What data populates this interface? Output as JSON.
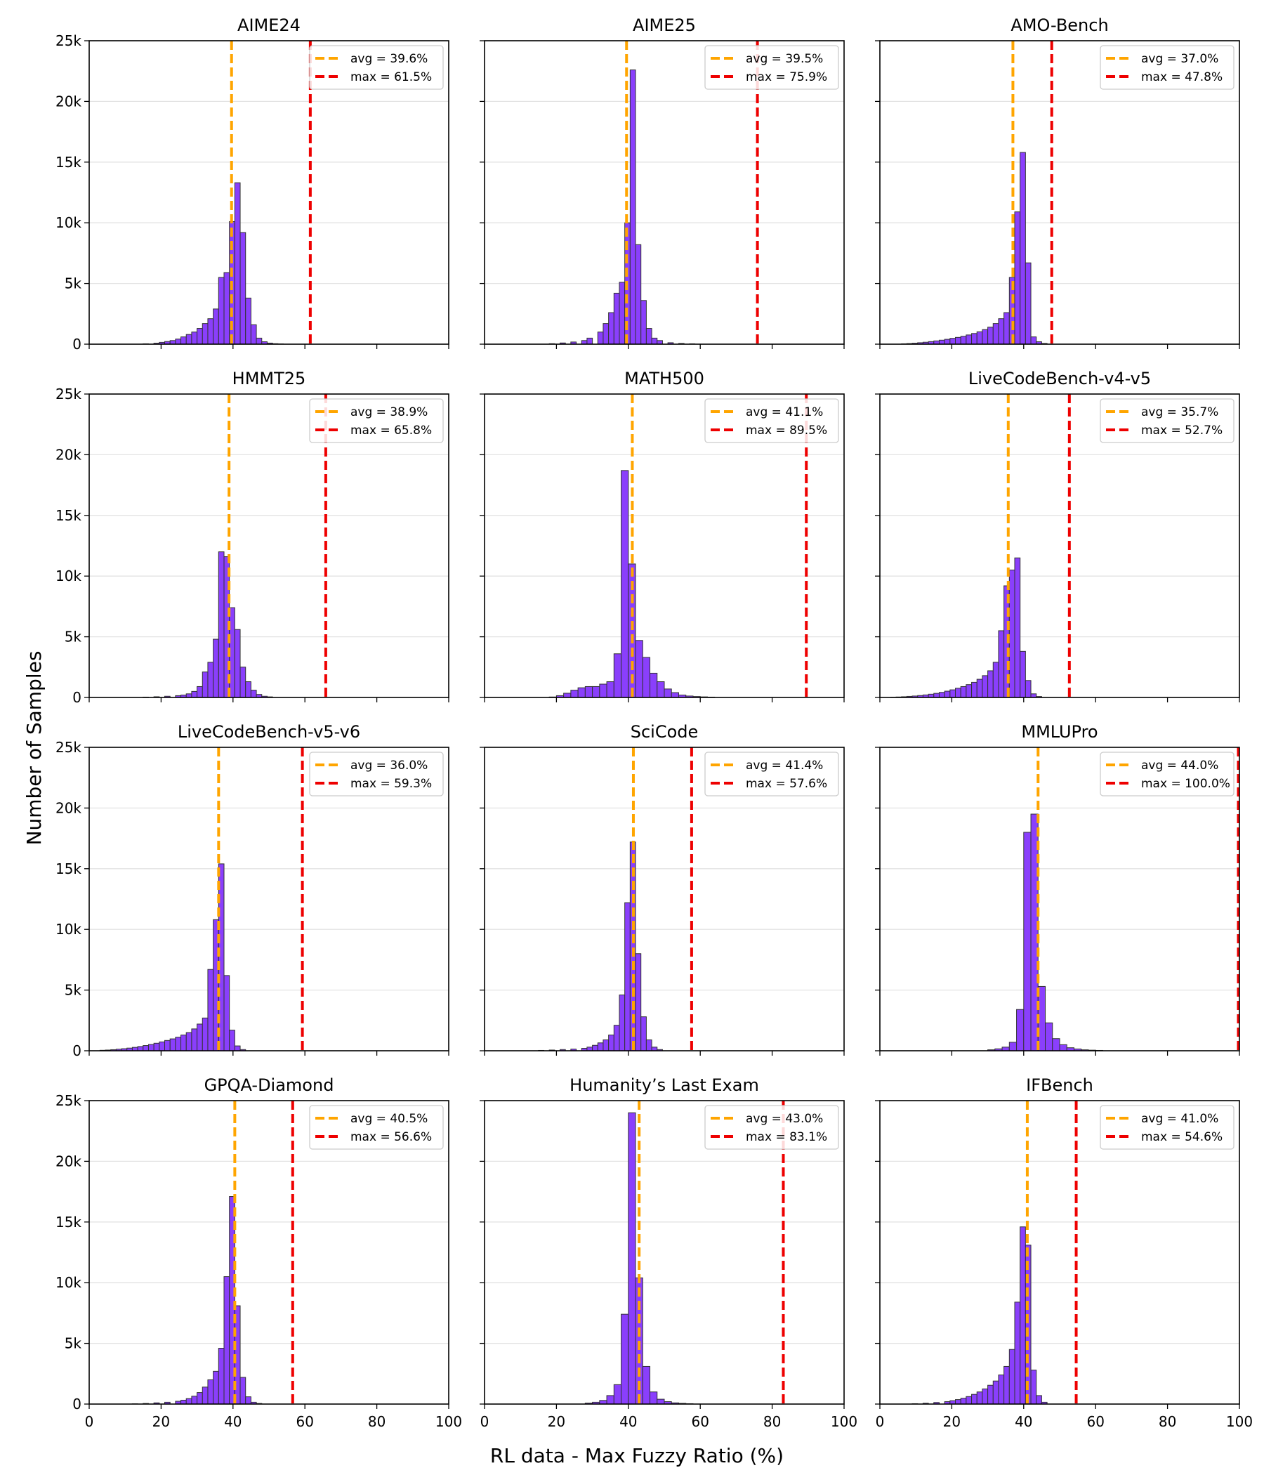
{
  "figure": {
    "ylabel": "Number of Samples",
    "xlabel": "RL data - Max Fuzzy Ratio (%)",
    "bar_color": "#8a3ffc",
    "bar_edge_color": "#333333",
    "avg_color": "#ffa500",
    "max_color": "#ee0000"
  },
  "chart_data": [
    {
      "type": "bar",
      "title": "AIME24",
      "xlim": [
        0,
        100
      ],
      "ylim": [
        0,
        25000
      ],
      "bin_width": 1.5,
      "xticks": [
        "0",
        "20",
        "40",
        "60",
        "80",
        "100"
      ],
      "yticks": [
        "0",
        "5k",
        "10k",
        "15k",
        "20k",
        "25k"
      ],
      "legend_avg": "avg = 39.6%",
      "legend_max": "max = 61.5%",
      "avg": 39.6,
      "max": 61.5,
      "bins": [
        [
          15,
          30
        ],
        [
          18,
          80
        ],
        [
          19.5,
          150
        ],
        [
          21,
          220
        ],
        [
          22.5,
          300
        ],
        [
          24,
          420
        ],
        [
          25.5,
          600
        ],
        [
          27,
          800
        ],
        [
          28.5,
          1000
        ],
        [
          30,
          1300
        ],
        [
          31.5,
          1700
        ],
        [
          33,
          2100
        ],
        [
          34.5,
          2900
        ],
        [
          36,
          5500
        ],
        [
          37.5,
          5900
        ],
        [
          39,
          10100
        ],
        [
          40.5,
          13300
        ],
        [
          42,
          9200
        ],
        [
          43.5,
          3800
        ],
        [
          45,
          1600
        ],
        [
          46.5,
          500
        ],
        [
          48,
          200
        ],
        [
          49.5,
          90
        ],
        [
          51,
          40
        ],
        [
          52.5,
          20
        ]
      ]
    },
    {
      "type": "bar",
      "title": "AIME25",
      "xlim": [
        0,
        100
      ],
      "ylim": [
        0,
        25000
      ],
      "bin_width": 1.5,
      "xticks": [
        "0",
        "20",
        "40",
        "60",
        "80",
        "100"
      ],
      "yticks": [
        "0",
        "5k",
        "10k",
        "15k",
        "20k",
        "25k"
      ],
      "legend_avg": "avg = 39.5%",
      "legend_max": "max = 75.9%",
      "avg": 39.5,
      "max": 75.9,
      "bins": [
        [
          18,
          40
        ],
        [
          21,
          100
        ],
        [
          24,
          180
        ],
        [
          27,
          300
        ],
        [
          28.5,
          500
        ],
        [
          31.5,
          1000
        ],
        [
          33,
          1700
        ],
        [
          34.5,
          2600
        ],
        [
          36,
          4200
        ],
        [
          37.5,
          5100
        ],
        [
          39,
          10000
        ],
        [
          40.5,
          22600
        ],
        [
          42,
          8200
        ],
        [
          43.5,
          3600
        ],
        [
          45,
          1300
        ],
        [
          46.5,
          500
        ],
        [
          48,
          300
        ],
        [
          51,
          120
        ],
        [
          54,
          60
        ],
        [
          57,
          30
        ]
      ]
    },
    {
      "type": "bar",
      "title": "AMO-Bench",
      "xlim": [
        0,
        100
      ],
      "ylim": [
        0,
        25000
      ],
      "bin_width": 1.5,
      "xticks": [
        "0",
        "20",
        "40",
        "60",
        "80",
        "100"
      ],
      "yticks": [
        "0",
        "5k",
        "10k",
        "15k",
        "20k",
        "25k"
      ],
      "legend_avg": "avg = 37.0%",
      "legend_max": "max = 47.8%",
      "avg": 37.0,
      "max": 47.8,
      "bins": [
        [
          6,
          30
        ],
        [
          7.5,
          50
        ],
        [
          9,
          80
        ],
        [
          10.5,
          120
        ],
        [
          12,
          160
        ],
        [
          13.5,
          210
        ],
        [
          15,
          270
        ],
        [
          16.5,
          330
        ],
        [
          18,
          400
        ],
        [
          19.5,
          480
        ],
        [
          21,
          560
        ],
        [
          22.5,
          650
        ],
        [
          24,
          760
        ],
        [
          25.5,
          880
        ],
        [
          27,
          1020
        ],
        [
          28.5,
          1200
        ],
        [
          30,
          1400
        ],
        [
          31.5,
          1700
        ],
        [
          33,
          2100
        ],
        [
          34.5,
          2600
        ],
        [
          36,
          5500
        ],
        [
          37.5,
          10900
        ],
        [
          39,
          15800
        ],
        [
          40.5,
          6700
        ],
        [
          42,
          600
        ],
        [
          43.5,
          200
        ],
        [
          45,
          60
        ]
      ]
    },
    {
      "type": "bar",
      "title": "HMMT25",
      "xlim": [
        0,
        100
      ],
      "ylim": [
        0,
        25000
      ],
      "bin_width": 1.5,
      "xticks": [
        "0",
        "20",
        "40",
        "60",
        "80",
        "100"
      ],
      "yticks": [
        "0",
        "5k",
        "10k",
        "15k",
        "20k",
        "25k"
      ],
      "legend_avg": "avg = 38.9%",
      "legend_max": "max = 65.8%",
      "avg": 38.9,
      "max": 65.8,
      "bins": [
        [
          15,
          30
        ],
        [
          18,
          60
        ],
        [
          21,
          100
        ],
        [
          24,
          150
        ],
        [
          25.5,
          200
        ],
        [
          27,
          300
        ],
        [
          28.5,
          500
        ],
        [
          30,
          900
        ],
        [
          31.5,
          2100
        ],
        [
          33,
          2900
        ],
        [
          34.5,
          4800
        ],
        [
          36,
          12000
        ],
        [
          37.5,
          11600
        ],
        [
          39,
          7400
        ],
        [
          40.5,
          5600
        ],
        [
          42,
          2500
        ],
        [
          43.5,
          1300
        ],
        [
          45,
          600
        ],
        [
          46.5,
          250
        ],
        [
          48,
          100
        ],
        [
          49.5,
          50
        ]
      ]
    },
    {
      "type": "bar",
      "title": "MATH500",
      "xlim": [
        0,
        100
      ],
      "ylim": [
        0,
        25000
      ],
      "bin_width": 2,
      "xticks": [
        "0",
        "20",
        "40",
        "60",
        "80",
        "100"
      ],
      "yticks": [
        "0",
        "5k",
        "10k",
        "15k",
        "20k",
        "25k"
      ],
      "legend_avg": "avg = 41.1%",
      "legend_max": "max = 89.5%",
      "avg": 41.1,
      "max": 89.5,
      "bins": [
        [
          18,
          40
        ],
        [
          20,
          150
        ],
        [
          22,
          350
        ],
        [
          24,
          600
        ],
        [
          26,
          800
        ],
        [
          28,
          900
        ],
        [
          30,
          900
        ],
        [
          32,
          1100
        ],
        [
          34,
          1300
        ],
        [
          36,
          3600
        ],
        [
          38,
          18700
        ],
        [
          40,
          11000
        ],
        [
          42,
          4700
        ],
        [
          44,
          3300
        ],
        [
          46,
          2000
        ],
        [
          48,
          1300
        ],
        [
          50,
          700
        ],
        [
          52,
          400
        ],
        [
          54,
          200
        ],
        [
          56,
          120
        ],
        [
          58,
          80
        ],
        [
          60,
          50
        ],
        [
          62,
          30
        ]
      ]
    },
    {
      "type": "bar",
      "title": "LiveCodeBench-v4-v5",
      "xlim": [
        0,
        100
      ],
      "ylim": [
        0,
        25000
      ],
      "bin_width": 1.5,
      "xticks": [
        "0",
        "20",
        "40",
        "60",
        "80",
        "100"
      ],
      "yticks": [
        "0",
        "5k",
        "10k",
        "15k",
        "20k",
        "25k"
      ],
      "legend_avg": "avg = 35.7%",
      "legend_max": "max = 52.7%",
      "avg": 35.7,
      "max": 52.7,
      "bins": [
        [
          3,
          20
        ],
        [
          4.5,
          40
        ],
        [
          6,
          60
        ],
        [
          7.5,
          90
        ],
        [
          9,
          120
        ],
        [
          10.5,
          160
        ],
        [
          12,
          210
        ],
        [
          13.5,
          270
        ],
        [
          15,
          340
        ],
        [
          16.5,
          420
        ],
        [
          18,
          520
        ],
        [
          19.5,
          630
        ],
        [
          21,
          760
        ],
        [
          22.5,
          900
        ],
        [
          24,
          1060
        ],
        [
          25.5,
          1250
        ],
        [
          27,
          1500
        ],
        [
          28.5,
          1800
        ],
        [
          30,
          2200
        ],
        [
          31.5,
          2900
        ],
        [
          33,
          5500
        ],
        [
          34.5,
          9200
        ],
        [
          36,
          10500
        ],
        [
          37.5,
          11500
        ],
        [
          39,
          3800
        ],
        [
          40.5,
          1400
        ],
        [
          42,
          300
        ],
        [
          43.5,
          80
        ]
      ]
    },
    {
      "type": "bar",
      "title": "LiveCodeBench-v5-v6",
      "xlim": [
        0,
        100
      ],
      "ylim": [
        0,
        25000
      ],
      "bin_width": 1.5,
      "xticks": [
        "0",
        "20",
        "40",
        "60",
        "80",
        "100"
      ],
      "yticks": [
        "0",
        "5k",
        "10k",
        "15k",
        "20k",
        "25k"
      ],
      "legend_avg": "avg = 36.0%",
      "legend_max": "max = 59.3%",
      "avg": 36.0,
      "max": 59.3,
      "bins": [
        [
          3,
          40
        ],
        [
          4.5,
          60
        ],
        [
          6,
          90
        ],
        [
          7.5,
          130
        ],
        [
          9,
          170
        ],
        [
          10.5,
          220
        ],
        [
          12,
          280
        ],
        [
          13.5,
          350
        ],
        [
          15,
          430
        ],
        [
          16.5,
          520
        ],
        [
          18,
          620
        ],
        [
          19.5,
          730
        ],
        [
          21,
          850
        ],
        [
          22.5,
          980
        ],
        [
          24,
          1120
        ],
        [
          25.5,
          1300
        ],
        [
          27,
          1500
        ],
        [
          28.5,
          1800
        ],
        [
          30,
          2200
        ],
        [
          31.5,
          2700
        ],
        [
          33,
          6700
        ],
        [
          34.5,
          10800
        ],
        [
          36,
          15400
        ],
        [
          37.5,
          6200
        ],
        [
          39,
          1700
        ],
        [
          40.5,
          400
        ],
        [
          42,
          100
        ]
      ]
    },
    {
      "type": "bar",
      "title": "SciCode",
      "xlim": [
        0,
        100
      ],
      "ylim": [
        0,
        25000
      ],
      "bin_width": 1.5,
      "xticks": [
        "0",
        "20",
        "40",
        "60",
        "80",
        "100"
      ],
      "yticks": [
        "0",
        "5k",
        "10k",
        "15k",
        "20k",
        "25k"
      ],
      "legend_avg": "avg = 41.4%",
      "legend_max": "max = 57.6%",
      "avg": 41.4,
      "max": 57.6,
      "bins": [
        [
          15,
          30
        ],
        [
          18,
          60
        ],
        [
          21,
          100
        ],
        [
          24,
          140
        ],
        [
          27,
          200
        ],
        [
          28.5,
          300
        ],
        [
          30,
          450
        ],
        [
          31.5,
          650
        ],
        [
          33,
          900
        ],
        [
          34.5,
          1300
        ],
        [
          36,
          2100
        ],
        [
          37.5,
          4600
        ],
        [
          39,
          12200
        ],
        [
          40.5,
          17200
        ],
        [
          42,
          8000
        ],
        [
          43.5,
          2800
        ],
        [
          45,
          900
        ],
        [
          46.5,
          300
        ],
        [
          48,
          100
        ]
      ]
    },
    {
      "type": "bar",
      "title": "MMLUPro",
      "xlim": [
        0,
        100
      ],
      "ylim": [
        0,
        25000
      ],
      "bin_width": 2,
      "xticks": [
        "0",
        "20",
        "40",
        "60",
        "80",
        "100"
      ],
      "yticks": [
        "0",
        "5k",
        "10k",
        "15k",
        "20k",
        "25k"
      ],
      "legend_avg": "avg = 44.0%",
      "legend_max": "max = 100.0%",
      "avg": 44.0,
      "max": 100.0,
      "bins": [
        [
          30,
          80
        ],
        [
          32,
          160
        ],
        [
          34,
          300
        ],
        [
          36,
          700
        ],
        [
          38,
          3400
        ],
        [
          40,
          18000
        ],
        [
          42,
          19500
        ],
        [
          44,
          5300
        ],
        [
          46,
          2300
        ],
        [
          48,
          1000
        ],
        [
          50,
          500
        ],
        [
          52,
          250
        ],
        [
          54,
          150
        ],
        [
          56,
          80
        ],
        [
          58,
          50
        ],
        [
          60,
          30
        ]
      ]
    },
    {
      "type": "bar",
      "title": "GPQA-Diamond",
      "xlim": [
        0,
        100
      ],
      "ylim": [
        0,
        25000
      ],
      "bin_width": 1.5,
      "xticks": [
        "0",
        "20",
        "40",
        "60",
        "80",
        "100"
      ],
      "yticks": [
        "0",
        "5k",
        "10k",
        "15k",
        "20k",
        "25k"
      ],
      "legend_avg": "avg = 40.5%",
      "legend_max": "max = 56.6%",
      "avg": 40.5,
      "max": 56.6,
      "bins": [
        [
          12,
          20
        ],
        [
          15,
          50
        ],
        [
          18,
          100
        ],
        [
          21,
          150
        ],
        [
          24,
          230
        ],
        [
          25.5,
          320
        ],
        [
          27,
          450
        ],
        [
          28.5,
          650
        ],
        [
          30,
          950
        ],
        [
          31.5,
          1400
        ],
        [
          33,
          2000
        ],
        [
          34.5,
          2700
        ],
        [
          36,
          4600
        ],
        [
          37.5,
          10500
        ],
        [
          39,
          17100
        ],
        [
          40.5,
          8100
        ],
        [
          42,
          2200
        ],
        [
          43.5,
          600
        ],
        [
          45,
          150
        ],
        [
          46.5,
          50
        ]
      ]
    },
    {
      "type": "bar",
      "title": "Humanity’s Last Exam",
      "xlim": [
        0,
        100
      ],
      "ylim": [
        0,
        25000
      ],
      "bin_width": 2,
      "xticks": [
        "0",
        "20",
        "40",
        "60",
        "80",
        "100"
      ],
      "yticks": [
        "0",
        "5k",
        "10k",
        "15k",
        "20k",
        "25k"
      ],
      "legend_avg": "avg = 43.0%",
      "legend_max": "max = 83.1%",
      "avg": 43.0,
      "max": 83.1,
      "bins": [
        [
          28,
          80
        ],
        [
          30,
          150
        ],
        [
          32,
          300
        ],
        [
          34,
          700
        ],
        [
          36,
          1600
        ],
        [
          38,
          7400
        ],
        [
          40,
          24000
        ],
        [
          42,
          10400
        ],
        [
          44,
          3100
        ],
        [
          46,
          1000
        ],
        [
          48,
          400
        ],
        [
          50,
          200
        ],
        [
          52,
          100
        ],
        [
          54,
          60
        ],
        [
          56,
          30
        ]
      ]
    },
    {
      "type": "bar",
      "title": "IFBench",
      "xlim": [
        0,
        100
      ],
      "ylim": [
        0,
        25000
      ],
      "bin_width": 1.5,
      "xticks": [
        "0",
        "20",
        "40",
        "60",
        "80",
        "100"
      ],
      "yticks": [
        "0",
        "5k",
        "10k",
        "15k",
        "20k",
        "25k"
      ],
      "legend_avg": "avg = 41.0%",
      "legend_max": "max = 54.6%",
      "avg": 41.0,
      "max": 54.6,
      "bins": [
        [
          9,
          30
        ],
        [
          12,
          70
        ],
        [
          15,
          130
        ],
        [
          18,
          200
        ],
        [
          19.5,
          280
        ],
        [
          21,
          370
        ],
        [
          22.5,
          480
        ],
        [
          24,
          620
        ],
        [
          25.5,
          800
        ],
        [
          27,
          1000
        ],
        [
          28.5,
          1250
        ],
        [
          30,
          1550
        ],
        [
          31.5,
          1900
        ],
        [
          33,
          2400
        ],
        [
          34.5,
          3100
        ],
        [
          36,
          4500
        ],
        [
          37.5,
          8400
        ],
        [
          39,
          14600
        ],
        [
          40.5,
          13100
        ],
        [
          42,
          2800
        ],
        [
          43.5,
          700
        ],
        [
          45,
          150
        ]
      ]
    }
  ]
}
